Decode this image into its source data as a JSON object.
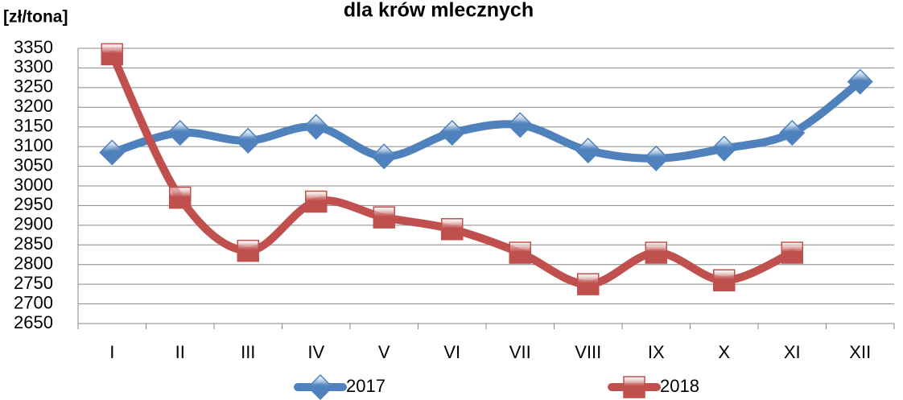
{
  "chart_data": {
    "type": "line",
    "title": "dla krów mlecznych",
    "y_label": "[zł/tona]",
    "categories": [
      "I",
      "II",
      "III",
      "IV",
      "V",
      "VI",
      "VII",
      "VIII",
      "IX",
      "X",
      "XI",
      "XII"
    ],
    "series": [
      {
        "name": "2017",
        "color": "#4f81bd",
        "marker": "diamond",
        "values": [
          3085,
          3135,
          3115,
          3150,
          3075,
          3135,
          3155,
          3090,
          3070,
          3095,
          3135,
          3265
        ]
      },
      {
        "name": "2018",
        "color": "#c0504d",
        "marker": "square",
        "values": [
          3335,
          2970,
          2835,
          2960,
          2920,
          2890,
          2830,
          2750,
          2830,
          2760,
          2830,
          null
        ]
      }
    ],
    "ylim": [
      2650,
      3350
    ],
    "yticks": [
      2650,
      2700,
      2750,
      2800,
      2850,
      2900,
      2950,
      3000,
      3050,
      3100,
      3150,
      3200,
      3250,
      3300,
      3350
    ],
    "grid": true,
    "smooth": true,
    "legend": "bottom"
  }
}
